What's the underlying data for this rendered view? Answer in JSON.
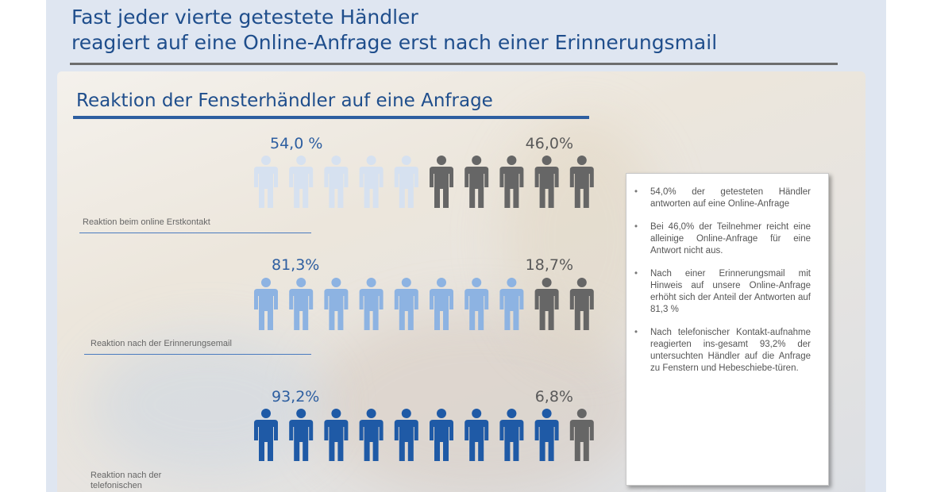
{
  "heading": {
    "line1": "Fast jeder vierte getestete Händler",
    "line2": "reagiert auf eine Online-Anfrage erst nach einer Erinnerungsmail"
  },
  "subtitle": "Reaktion der Fensterhändler auf eine Anfrage",
  "colors": {
    "heading": "#1f4e8c",
    "responded_row1": "#d6e1f0",
    "responded_row2": "#8db3e2",
    "responded_row3": "#1f5aa6",
    "not_responded": "#666666"
  },
  "figure_icon": "person-icon",
  "chart_data": {
    "type": "pictograph",
    "icons_per_row": 10,
    "rows": [
      {
        "label": "Reaktion beim online Erstkontakt",
        "responded_label": "54,0 %",
        "not_responded_label": "46,0%",
        "responded_pct": 54.0,
        "not_responded_pct": 46.0,
        "responded_icons": 5
      },
      {
        "label": "Reaktion nach der Erinnerungsemail",
        "responded_label": "81,3%",
        "not_responded_label": "18,7%",
        "responded_pct": 81.3,
        "not_responded_pct": 18.7,
        "responded_icons": 8
      },
      {
        "label": "Reaktion nach der telefonischen Kontaktaufnahme",
        "responded_label": "93,2%",
        "not_responded_label": "6,8%",
        "responded_pct": 93.2,
        "not_responded_pct": 6.8,
        "responded_icons": 9
      }
    ]
  },
  "notes": [
    "54,0% der getesteten Händler antworten auf eine Online-Anfrage",
    "Bei 46,0% der Teilnehmer reicht eine alleinige Online-Anfrage für eine Antwort nicht aus.",
    "Nach einer Erinnerungsmail mit Hinweis auf unsere Online-Anfrage erhöht sich der Anteil der Antworten auf 81,3 %",
    "Nach telefonischer Kontakt-aufnahme reagierten ins-gesamt 93,2% der untersuchten Händler auf die Anfrage zu Fenstern und Hebeschiebe-türen."
  ]
}
